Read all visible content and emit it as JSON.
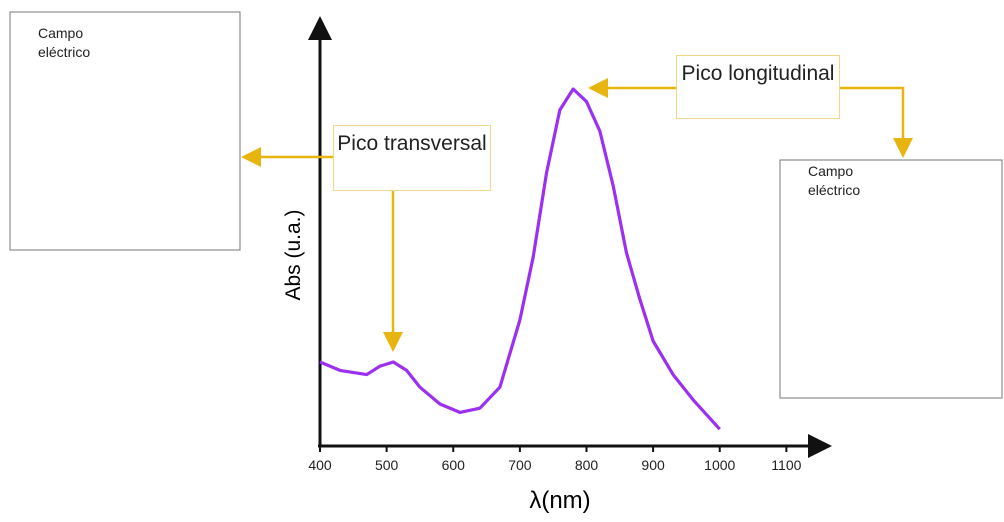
{
  "chart_data": {
    "type": "line",
    "x_label": "λ(nm)",
    "y_label": "Abs (u.a.)",
    "x": [
      400,
      430,
      470,
      490,
      510,
      530,
      550,
      580,
      610,
      640,
      670,
      700,
      720,
      740,
      760,
      780,
      800,
      820,
      840,
      860,
      880,
      900,
      930,
      960,
      1000
    ],
    "values": [
      0.2,
      0.18,
      0.17,
      0.19,
      0.2,
      0.18,
      0.14,
      0.1,
      0.08,
      0.09,
      0.14,
      0.3,
      0.45,
      0.65,
      0.8,
      0.85,
      0.82,
      0.75,
      0.62,
      0.46,
      0.35,
      0.25,
      0.17,
      0.11,
      0.04
    ],
    "color": "#9b30f0",
    "xlim": [
      400,
      1170
    ],
    "xticks": [
      400,
      500,
      600,
      700,
      800,
      900,
      1000,
      1100
    ],
    "ylim": [
      0,
      1
    ],
    "annotations": [
      "Pico transversal",
      "Pico longitudinal"
    ],
    "insets": [
      "Campo eléctrico",
      "Campo eléctrico"
    ]
  }
}
